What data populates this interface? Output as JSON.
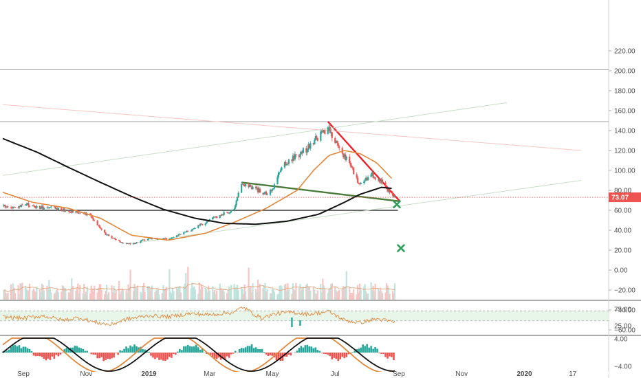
{
  "colors": {
    "up": "#26a69a",
    "down": "#ef5350",
    "sma_fast": "#e0873a",
    "sma_slow": "#111111",
    "trend_red": "#f0202a",
    "trend_green": "#4a7a3a",
    "price_line": "#ef5350",
    "target_mark": "#2e9e5a",
    "rsi_line": "#e0873a",
    "rsi_band": "#e8f5e9"
  },
  "chart_data": {
    "type": "candlestick",
    "price_axis": {
      "ylim": [
        -70,
        230
      ],
      "ticks": [
        220,
        200,
        180,
        160,
        140,
        120,
        100,
        80,
        60,
        40,
        20,
        0,
        -20,
        -40,
        -60
      ],
      "tick_labels": [
        "220.00",
        "200.00",
        "180.00",
        "160.00",
        "140.00",
        "120.00",
        "100.00",
        "80.00",
        "60.00",
        "40.00",
        "20.00",
        "0.00",
        "−20.00",
        "−40.00",
        "−60.00"
      ]
    },
    "current_price": {
      "value": 73.07,
      "label": "73.07"
    },
    "time_axis": {
      "labels": [
        {
          "text": "Sep",
          "date": "2018-09-01",
          "bold": false
        },
        {
          "text": "Nov",
          "date": "2018-11-01",
          "bold": false
        },
        {
          "text": "2019",
          "date": "2019-01-01",
          "bold": true
        },
        {
          "text": "Mar",
          "date": "2019-03-01",
          "bold": false
        },
        {
          "text": "May",
          "date": "2019-05-01",
          "bold": false
        },
        {
          "text": "Jul",
          "date": "2019-07-01",
          "bold": false
        },
        {
          "text": "Sep",
          "date": "2019-09-01",
          "bold": false
        },
        {
          "text": "Nov",
          "date": "2019-11-01",
          "bold": false
        },
        {
          "text": "2020",
          "date": "2020-01-01",
          "bold": true
        },
        {
          "text": "17",
          "date": "2020-02-17",
          "bold": false
        }
      ]
    },
    "price_anchors": [
      [
        "2018-08-12",
        64
      ],
      [
        "2018-08-25",
        62
      ],
      [
        "2018-09-03",
        66
      ],
      [
        "2018-09-15",
        63
      ],
      [
        "2018-10-01",
        62
      ],
      [
        "2018-10-20",
        59
      ],
      [
        "2018-11-05",
        55
      ],
      [
        "2018-11-20",
        36
      ],
      [
        "2018-12-05",
        28
      ],
      [
        "2018-12-15",
        26
      ],
      [
        "2019-01-01",
        32
      ],
      [
        "2019-01-20",
        31
      ],
      [
        "2019-02-10",
        40
      ],
      [
        "2019-02-25",
        48
      ],
      [
        "2019-03-15",
        57
      ],
      [
        "2019-03-25",
        60
      ],
      [
        "2019-04-01",
        87
      ],
      [
        "2019-04-10",
        84
      ],
      [
        "2019-04-25",
        76
      ],
      [
        "2019-05-01",
        80
      ],
      [
        "2019-05-10",
        105
      ],
      [
        "2019-05-25",
        115
      ],
      [
        "2019-06-05",
        123
      ],
      [
        "2019-06-15",
        135
      ],
      [
        "2019-06-25",
        140
      ],
      [
        "2019-07-05",
        122
      ],
      [
        "2019-07-15",
        108
      ],
      [
        "2019-07-25",
        85
      ],
      [
        "2019-08-05",
        96
      ],
      [
        "2019-08-15",
        90
      ],
      [
        "2019-08-25",
        75
      ],
      [
        "2019-08-28",
        73
      ]
    ],
    "sma_fast_anchors": [
      [
        "2018-08-12",
        78
      ],
      [
        "2018-09-10",
        68
      ],
      [
        "2018-10-15",
        62
      ],
      [
        "2018-11-15",
        52
      ],
      [
        "2018-12-15",
        35
      ],
      [
        "2019-01-20",
        30
      ],
      [
        "2019-02-25",
        37
      ],
      [
        "2019-03-25",
        48
      ],
      [
        "2019-04-25",
        62
      ],
      [
        "2019-05-25",
        80
      ],
      [
        "2019-06-10",
        100
      ],
      [
        "2019-06-25",
        115
      ],
      [
        "2019-07-10",
        120
      ],
      [
        "2019-07-25",
        117
      ],
      [
        "2019-08-10",
        108
      ],
      [
        "2019-08-25",
        92
      ]
    ],
    "sma_slow_anchors": [
      [
        "2018-08-12",
        132
      ],
      [
        "2018-09-15",
        118
      ],
      [
        "2018-10-15",
        103
      ],
      [
        "2018-11-15",
        88
      ],
      [
        "2018-12-15",
        74
      ],
      [
        "2019-01-15",
        61
      ],
      [
        "2019-02-15",
        52
      ],
      [
        "2019-03-15",
        47
      ],
      [
        "2019-04-15",
        46
      ],
      [
        "2019-05-15",
        49
      ],
      [
        "2019-06-15",
        56
      ],
      [
        "2019-07-10",
        68
      ],
      [
        "2019-07-25",
        76
      ],
      [
        "2019-08-15",
        83
      ],
      [
        "2019-08-25",
        82
      ]
    ],
    "horizontal_levels": [
      201,
      149,
      60
    ],
    "trendlines": [
      {
        "name": "descending-resistance",
        "color": "trend_red",
        "from": [
          "2019-06-24",
          149
        ],
        "to": [
          "2019-09-02",
          69
        ]
      },
      {
        "name": "descending-support",
        "color": "trend_green",
        "from": [
          "2019-04-01",
          88
        ],
        "to": [
          "2019-09-02",
          69
        ]
      },
      {
        "name": "upper-channel",
        "color": "#c8dcc8",
        "from": [
          "2018-08-12",
          95
        ],
        "to": [
          "2019-12-15",
          168
        ]
      },
      {
        "name": "lower-channel",
        "color": "#c8dcc8",
        "from": [
          "2018-12-10",
          26
        ],
        "to": [
          "2020-02-25",
          90
        ]
      },
      {
        "name": "falling-line",
        "color": "#f6c6c6",
        "from": [
          "2018-08-12",
          166
        ],
        "to": [
          "2020-02-25",
          120
        ]
      }
    ],
    "targets": [
      {
        "date": "2019-08-30",
        "value": 66
      },
      {
        "date": "2019-09-03",
        "value": 22
      }
    ],
    "rsi": {
      "ticks": [
        75,
        25
      ],
      "tick_labels": [
        "75.00",
        "25.00"
      ],
      "range": [
        0,
        100
      ],
      "band": [
        40,
        70
      ],
      "anchors": [
        [
          "2018-08-12",
          52
        ],
        [
          "2018-09-01",
          48
        ],
        [
          "2018-09-20",
          55
        ],
        [
          "2018-10-10",
          42
        ],
        [
          "2018-10-25",
          50
        ],
        [
          "2018-11-10",
          35
        ],
        [
          "2018-11-25",
          28
        ],
        [
          "2018-12-10",
          45
        ],
        [
          "2019-01-01",
          56
        ],
        [
          "2019-01-20",
          52
        ],
        [
          "2019-02-10",
          62
        ],
        [
          "2019-03-01",
          58
        ],
        [
          "2019-03-25",
          66
        ],
        [
          "2019-04-02",
          82
        ],
        [
          "2019-04-20",
          48
        ],
        [
          "2019-05-05",
          62
        ],
        [
          "2019-05-20",
          66
        ],
        [
          "2019-06-05",
          60
        ],
        [
          "2019-06-25",
          68
        ],
        [
          "2019-07-10",
          42
        ],
        [
          "2019-07-25",
          34
        ],
        [
          "2019-08-10",
          46
        ],
        [
          "2019-08-28",
          36
        ]
      ]
    },
    "macd": {
      "ticks": [
        4.0,
        -4.0
      ],
      "tick_labels": [
        "4.00",
        "−4.00"
      ],
      "range": [
        -6,
        6
      ]
    }
  }
}
